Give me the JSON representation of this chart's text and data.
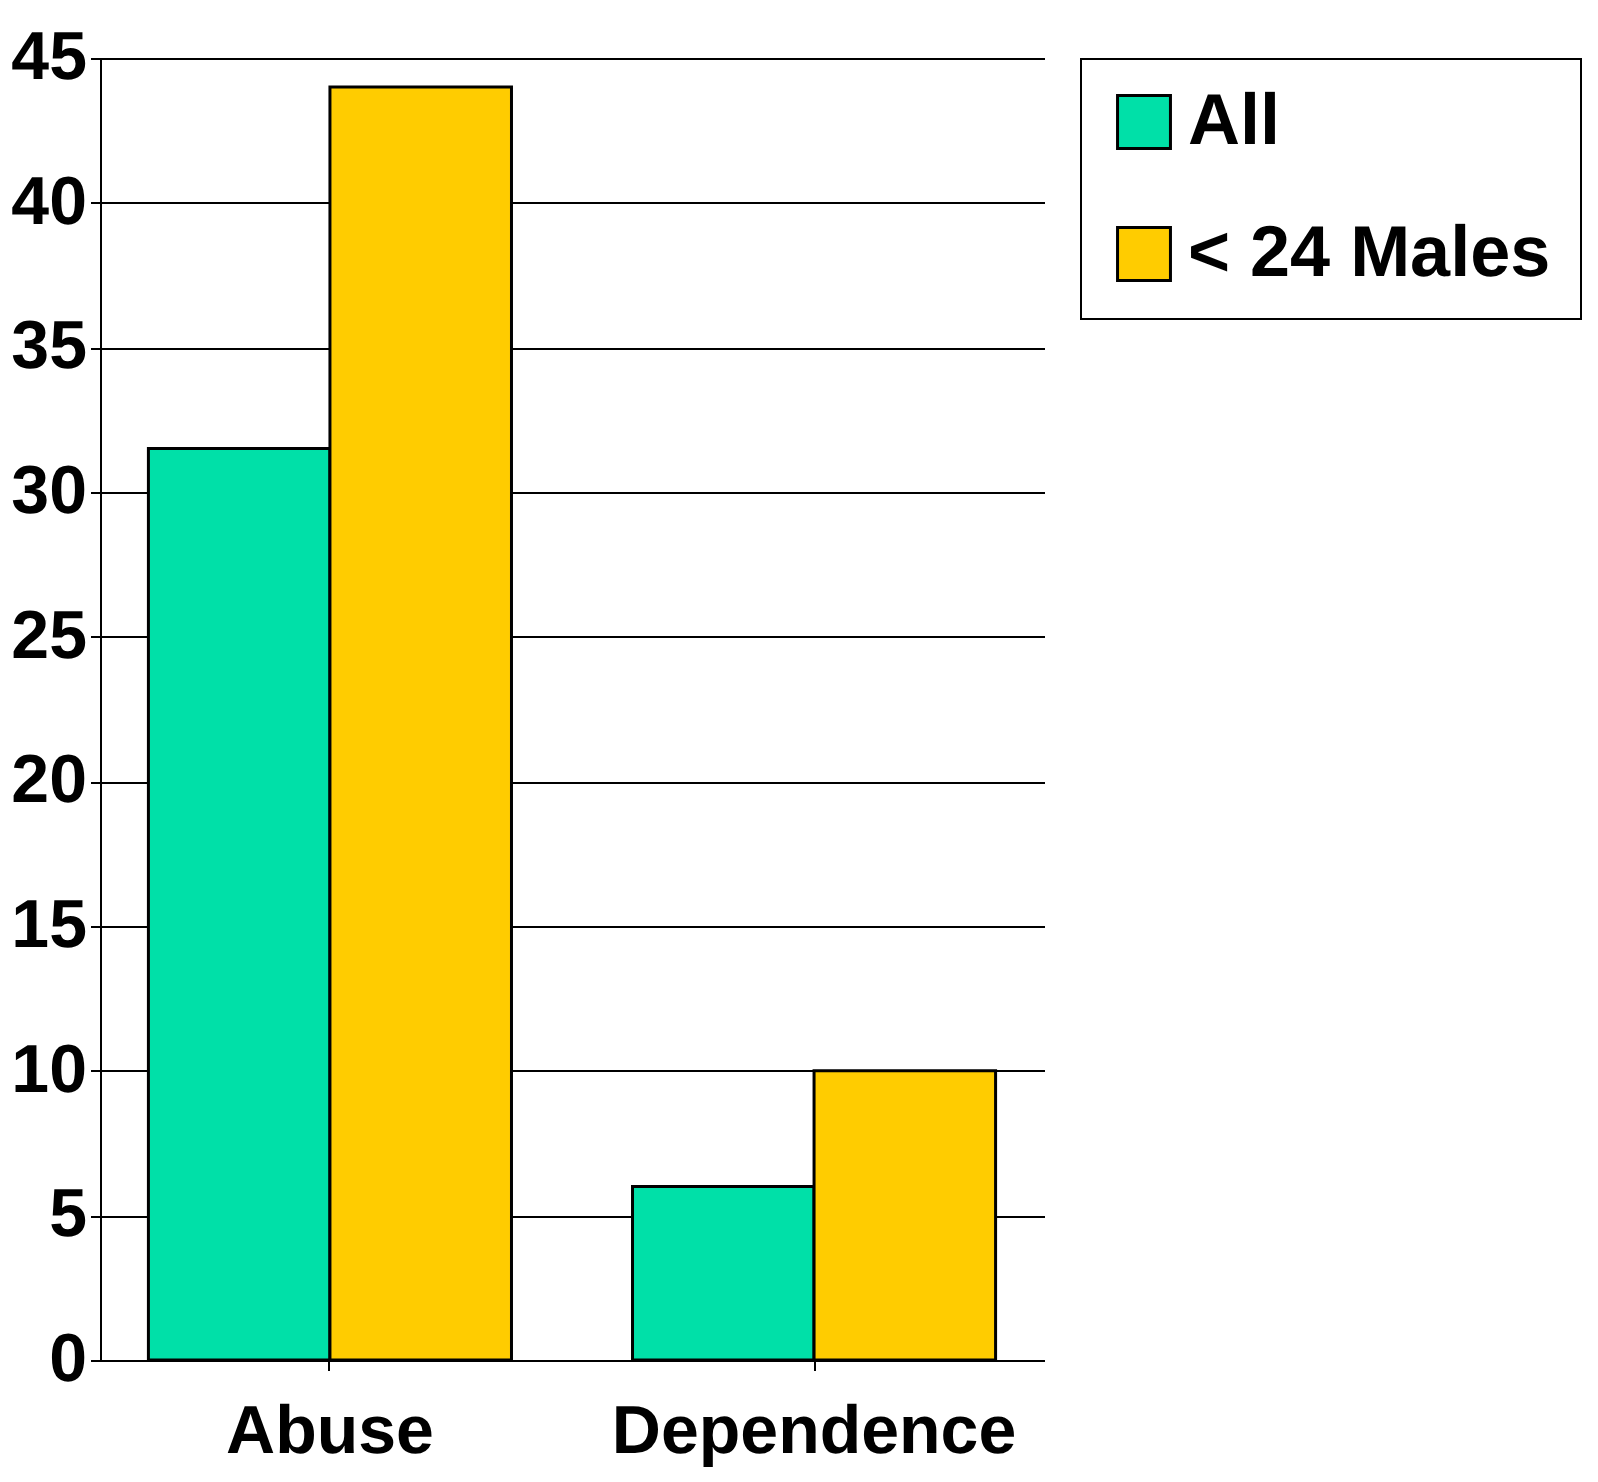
{
  "chart_data": {
    "type": "bar",
    "categories": [
      "Abuse",
      "Dependence"
    ],
    "series": [
      {
        "name": "All",
        "color": "#00e0a8",
        "values": [
          31.5,
          6
        ]
      },
      {
        "name": "< 24 Males",
        "color": "#ffcc00",
        "values": [
          44,
          10
        ]
      }
    ],
    "ylim": [
      0,
      45
    ],
    "yticks": [
      0,
      5,
      10,
      15,
      20,
      25,
      30,
      35,
      40,
      45
    ],
    "grid": "y",
    "legend": "right"
  }
}
